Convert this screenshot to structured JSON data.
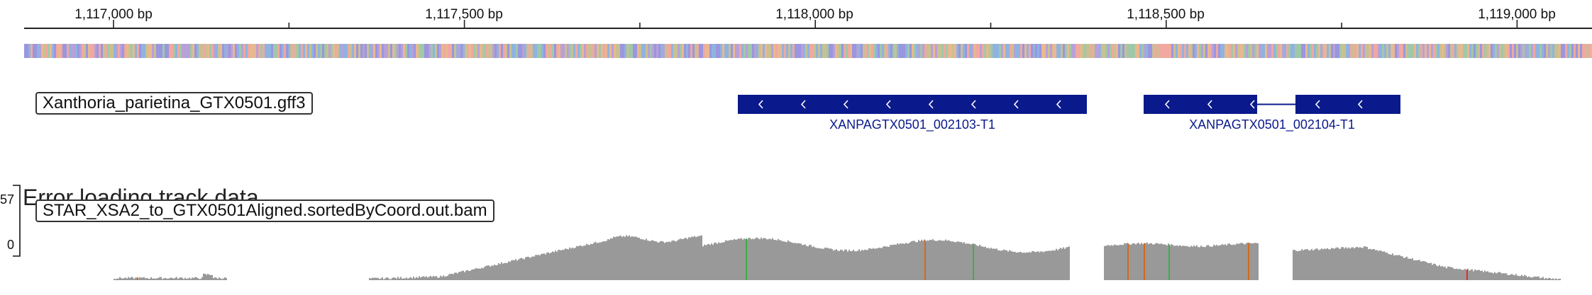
{
  "ruler": {
    "ticks": [
      {
        "label": "1,117,000 bp"
      },
      {
        "label": "1,117,500 bp"
      },
      {
        "label": "1,118,000 bp"
      },
      {
        "label": "1,118,500 bp"
      },
      {
        "label": "1,119,000 bp"
      }
    ]
  },
  "annotation_track": {
    "label": "Xanthoria_parietina_GTX0501.gff3",
    "features": [
      {
        "name": "XANPAGTX0501_002103-T1",
        "strand": "-"
      },
      {
        "name": "XANPAGTX0501_002104-T1",
        "strand": "-"
      }
    ]
  },
  "alignment_track": {
    "label": "STAR_XSA2_to_GTX0501Aligned.sortedByCoord.out.bam",
    "scale_max": "57",
    "scale_min": "0",
    "error_message": "Error loading track data"
  },
  "colors": {
    "feature": "#0a1a8c",
    "coverage": "#999999",
    "snp_green": "#3cb043",
    "snp_orange": "#d2691e",
    "snp_red": "#e03020"
  }
}
